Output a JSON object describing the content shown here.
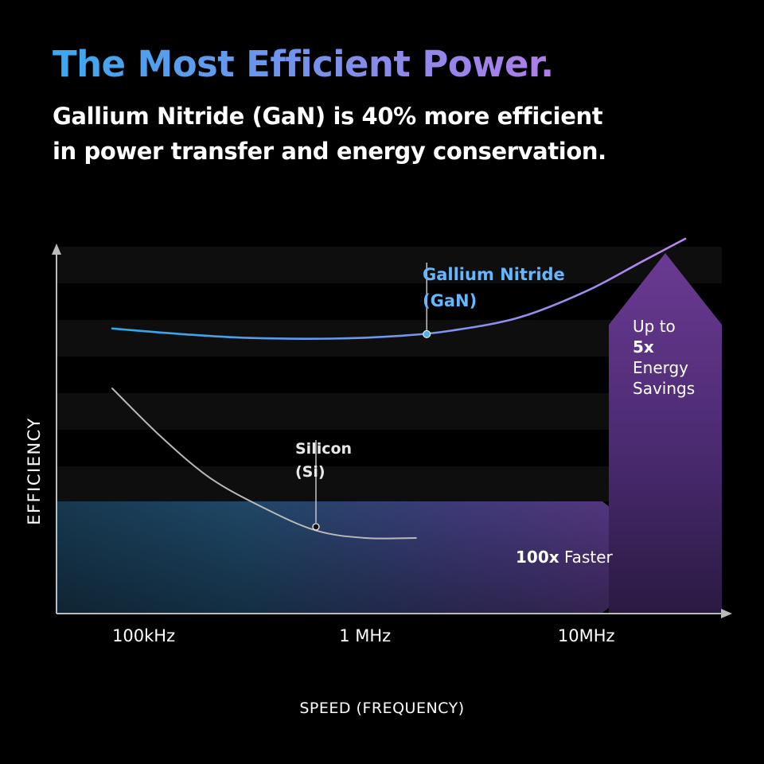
{
  "header": {
    "title": "The Most Efficient Power.",
    "subtitle_line1": "Gallium Nitride (GaN) is 40% more efficient",
    "subtitle_line2": "in power transfer and energy conservation."
  },
  "colors": {
    "background": "#000000",
    "title_gradient_start": "#3aa8f0",
    "title_gradient_end": "#b07ce8",
    "gan_curve_start": "#2aa8e8",
    "gan_curve_end": "#b985f0",
    "silicon_curve": "#b9b9b9",
    "band_blue": "#1e4766",
    "band_purple": "#5a3480"
  },
  "chart_data": {
    "type": "line",
    "xlabel": "SPEED (FREQUENCY)",
    "ylabel": "EFFICIENCY",
    "x_scale": "log",
    "x_ticks": [
      {
        "value": 100000,
        "label": "100kHz"
      },
      {
        "value": 1000000,
        "label": "1 MHz"
      },
      {
        "value": 10000000,
        "label": "10MHz"
      }
    ],
    "xlim": [
      40000,
      42000000
    ],
    "ylim": [
      0,
      1
    ],
    "grid": "horizontal bands",
    "series": [
      {
        "name": "Gallium Nitride (GaN)",
        "label_line1": "Gallium Nitride",
        "label_line2": "(GaN)",
        "x": [
          72000,
          150000,
          300000,
          700000,
          1400000,
          2500000,
          5000000,
          10000000,
          18000000,
          28000000
        ],
        "y": [
          0.76,
          0.745,
          0.735,
          0.733,
          0.74,
          0.755,
          0.79,
          0.86,
          0.94,
          1.0
        ],
        "marker": {
          "x": 1900000,
          "y": 0.745
        }
      },
      {
        "name": "Silicon (Si)",
        "label_line1": "Silicon",
        "label_line2": "(Si)",
        "x": [
          72000,
          120000,
          200000,
          350000,
          600000,
          1000000,
          1700000
        ],
        "y": [
          0.6,
          0.47,
          0.36,
          0.28,
          0.22,
          0.2,
          0.2
        ],
        "marker": {
          "x": 600000,
          "y": 0.23
        }
      }
    ],
    "annotations": [
      {
        "id": "faster",
        "bold": "100x",
        "text": " Faster"
      },
      {
        "id": "savings",
        "line1": "Up to",
        "line2_bold": "5x",
        "line3": "Energy",
        "line4": "Savings"
      }
    ]
  }
}
